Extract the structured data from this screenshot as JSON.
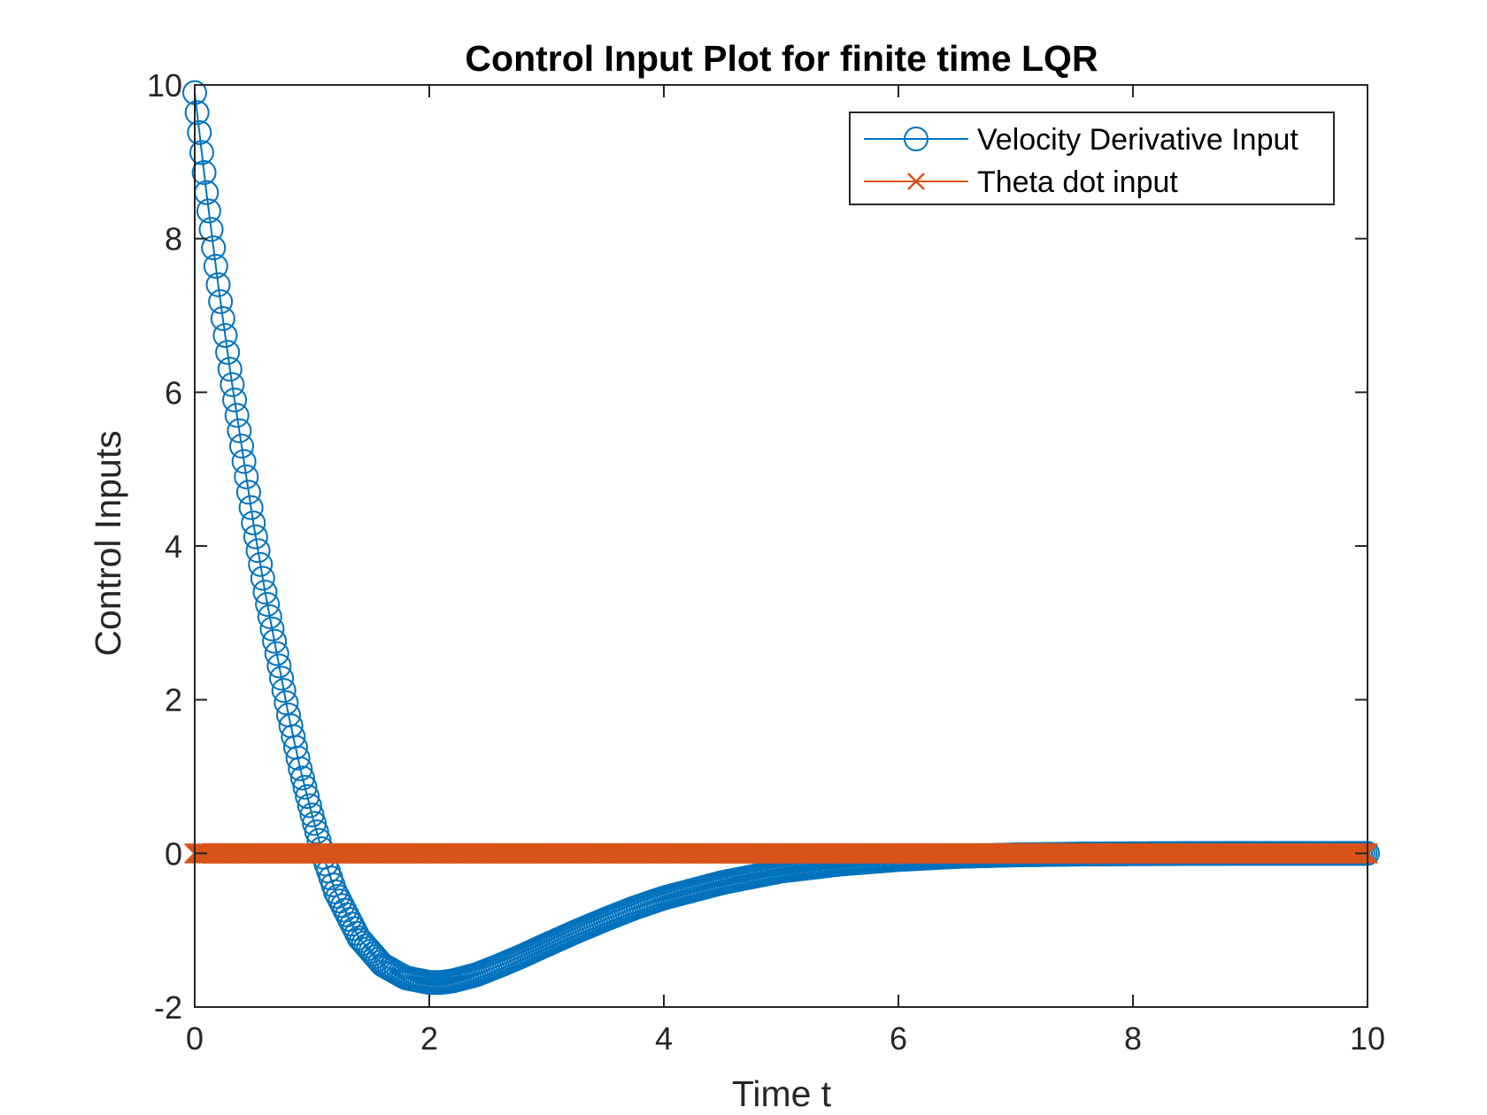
{
  "chart_data": {
    "type": "line",
    "title": "Control Input Plot for finite time LQR",
    "xlabel": "Time t",
    "ylabel": "Control Inputs",
    "xlim": [
      0,
      10
    ],
    "ylim": [
      -2,
      10
    ],
    "xticks": [
      0,
      2,
      4,
      6,
      8,
      10
    ],
    "yticks": [
      -2,
      0,
      2,
      4,
      6,
      8,
      10
    ],
    "xtick_labels": [
      "0",
      "2",
      "4",
      "6",
      "8",
      "10"
    ],
    "ytick_labels": [
      "-2",
      "0",
      "2",
      "4",
      "6",
      "8",
      "10"
    ],
    "grid": false,
    "box": true,
    "legend_position": "top-right",
    "series": [
      {
        "name": "Velocity Derivative Input",
        "color": "#0072BD",
        "marker": "circle",
        "x": [
          0,
          0.1,
          0.2,
          0.3,
          0.4,
          0.5,
          0.6,
          0.7,
          0.8,
          0.9,
          1.0,
          1.1,
          1.2,
          1.4,
          1.6,
          1.8,
          2.0,
          2.1,
          2.2,
          2.4,
          2.6,
          2.8,
          3.0,
          3.25,
          3.5,
          3.75,
          4.0,
          4.5,
          5.0,
          5.5,
          6.0,
          6.5,
          7.0,
          7.5,
          8.0,
          8.5,
          9.0,
          9.5,
          10.0
        ],
        "y": [
          9.9,
          8.6,
          7.4,
          6.3,
          5.3,
          4.3,
          3.4,
          2.6,
          1.8,
          1.1,
          0.5,
          -0.05,
          -0.5,
          -1.1,
          -1.45,
          -1.62,
          -1.68,
          -1.68,
          -1.66,
          -1.58,
          -1.46,
          -1.33,
          -1.19,
          -1.02,
          -0.86,
          -0.71,
          -0.58,
          -0.38,
          -0.23,
          -0.14,
          -0.08,
          -0.04,
          -0.02,
          -0.01,
          -0.005,
          -0.002,
          0.0,
          0.0,
          0.0
        ]
      },
      {
        "name": "Theta dot input",
        "color": "#D95319",
        "marker": "x",
        "x": [
          0,
          2,
          4,
          6,
          8,
          10
        ],
        "y": [
          0,
          0,
          0,
          0,
          0,
          0
        ]
      }
    ]
  }
}
